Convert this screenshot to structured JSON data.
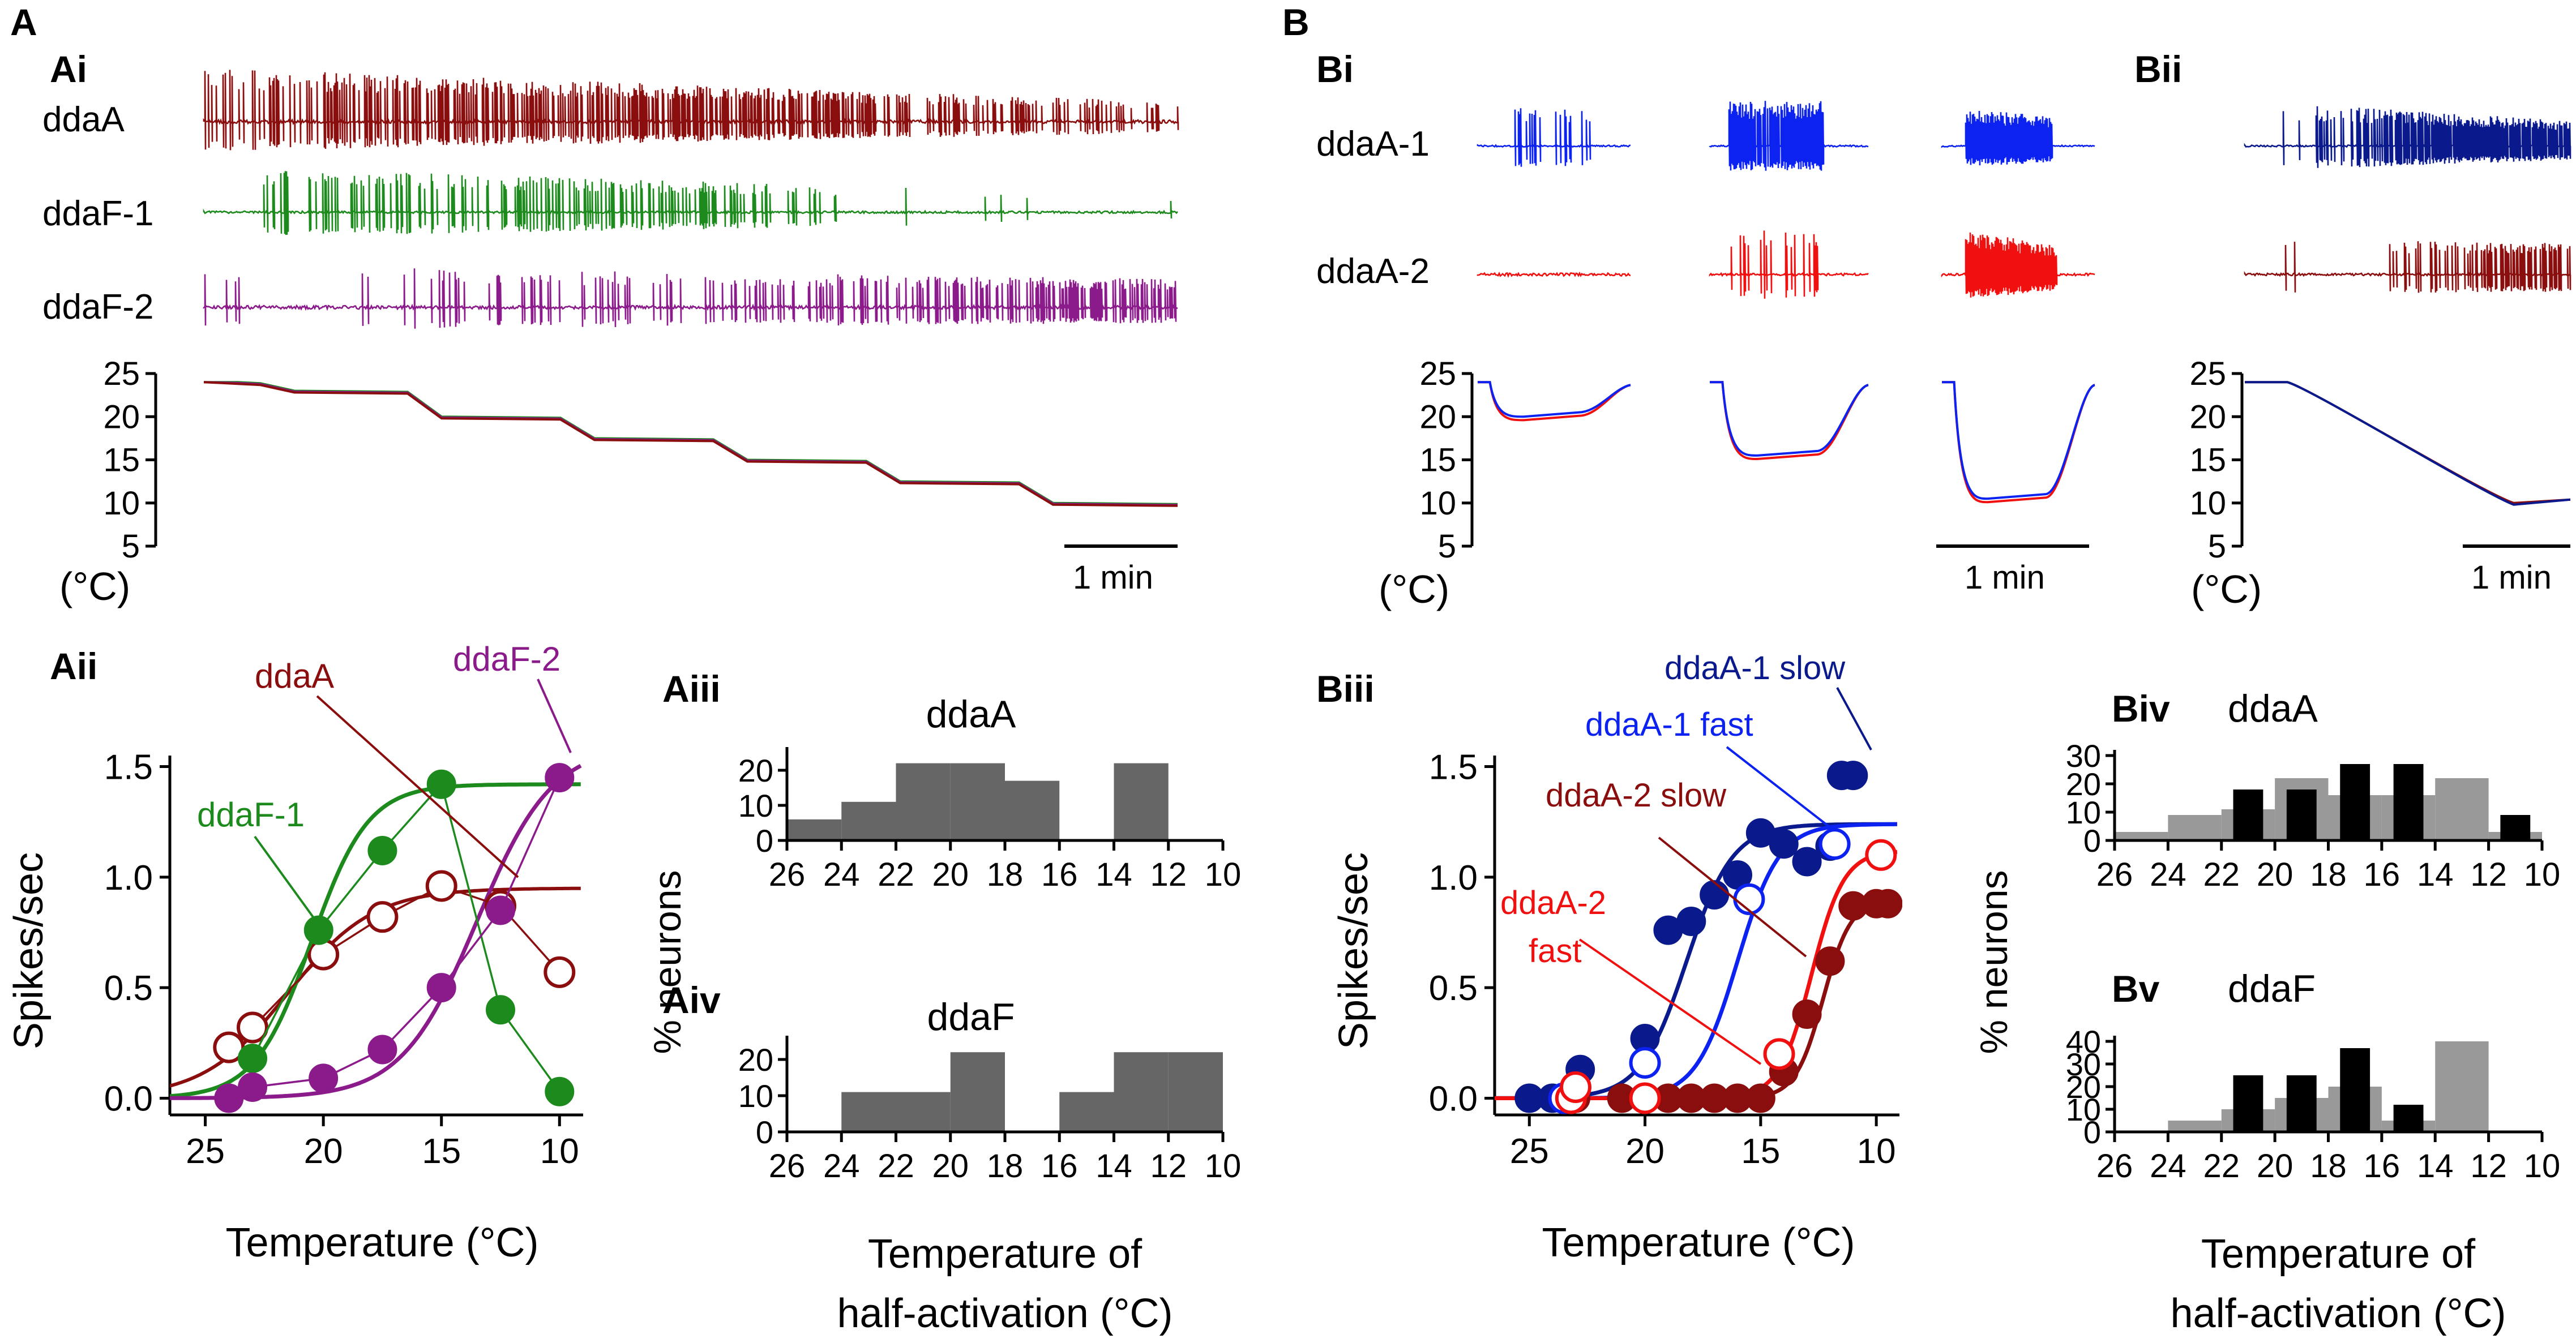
{
  "panel_labels": {
    "A": "A",
    "Ai": "Ai",
    "Aii": "Aii",
    "Aiii": "Aiii",
    "Aiv": "Aiv",
    "B": "B",
    "Bi": "Bi",
    "Bii": "Bii",
    "Biii": "Biii",
    "Biv": "Biv",
    "Bv": "Bv"
  },
  "colors": {
    "ddaA_dark": "#8b0e0e",
    "ddaF1_green": "#1c8a1c",
    "ddaF2_purple": "#8b1a8b",
    "blue_dark": "#0a1a8c",
    "blue_bright": "#0b22f0",
    "red_bright": "#f01010",
    "hist_dark": "#666666",
    "hist_black": "#000000",
    "hist_grey": "#999999"
  },
  "chart_data": [
    {
      "id": "Ai",
      "type": "line",
      "traces": [
        "ddaA",
        "ddaF-1",
        "ddaF-2"
      ],
      "ylabel": "(°C)",
      "yticks": [
        "25",
        "20",
        "15",
        "10",
        "5"
      ],
      "ylim": [
        5,
        25
      ],
      "scalebar_label": "1 min",
      "temperature_steps_c": [
        24,
        23,
        20,
        17.5,
        15,
        12.5,
        10
      ]
    },
    {
      "id": "Bi",
      "type": "line",
      "traces": [
        "ddaA-1",
        "ddaA-2"
      ],
      "ylabel": "(°C)",
      "yticks": [
        "25",
        "20",
        "15",
        "10",
        "5"
      ],
      "ylim": [
        5,
        25
      ],
      "scalebar_label": "1 min",
      "step_minimum_c": [
        20,
        15.5,
        10.5
      ]
    },
    {
      "id": "Bii",
      "type": "line",
      "ylabel": "(°C)",
      "yticks": [
        "25",
        "20",
        "15",
        "10",
        "5"
      ],
      "ylim": [
        5,
        25
      ],
      "scalebar_label": "1 min",
      "ramp_c": [
        24,
        10
      ]
    },
    {
      "id": "Aii",
      "type": "scatter",
      "xlabel": "Temperature (°C)",
      "ylabel": "Spikes/sec",
      "xticks": [
        "25",
        "20",
        "15",
        "10"
      ],
      "yticks": [
        "0.0",
        "0.5",
        "1.0",
        "1.5"
      ],
      "xlim": [
        26.5,
        9
      ],
      "ylim": [
        -0.05,
        1.55
      ],
      "series": [
        {
          "name": "ddaA",
          "label": "ddaA",
          "marker": "open",
          "x": [
            24,
            23,
            20,
            17.5,
            15,
            12.5,
            10
          ],
          "y": [
            0.23,
            0.32,
            0.65,
            0.82,
            0.96,
            0.87,
            0.57
          ]
        },
        {
          "name": "ddaF-1",
          "label": "ddaF-1",
          "marker": "filled",
          "x": [
            23,
            20.2,
            17.5,
            15,
            12.5,
            10
          ],
          "y": [
            0.18,
            0.76,
            1.12,
            1.42,
            0.4,
            0.03
          ]
        },
        {
          "name": "ddaF-2",
          "label": "ddaF-2",
          "marker": "filled",
          "x": [
            24,
            23,
            20,
            17.5,
            15,
            12.5,
            10
          ],
          "y": [
            0.0,
            0.05,
            0.09,
            0.22,
            0.5,
            0.85,
            1.45
          ]
        }
      ]
    },
    {
      "id": "Aiii",
      "type": "bar",
      "title": "ddaA",
      "categories": [
        "26-24",
        "24-22",
        "22-20",
        "20-18",
        "18-16",
        "16-14",
        "14-12",
        "12-10"
      ],
      "values": [
        6,
        11,
        22,
        22,
        17,
        0,
        22,
        0
      ],
      "xticks": [
        "26",
        "24",
        "22",
        "20",
        "18",
        "16",
        "14",
        "12",
        "10"
      ],
      "yticks": [
        "0",
        "10",
        "20"
      ],
      "ylim": [
        0,
        25
      ]
    },
    {
      "id": "Aiv",
      "type": "bar",
      "title": "ddaF",
      "categories": [
        "26-24",
        "24-22",
        "22-20",
        "20-18",
        "18-16",
        "16-14",
        "14-12",
        "12-10"
      ],
      "values": [
        0,
        11,
        11,
        22,
        0,
        11,
        22,
        22
      ],
      "xticks": [
        "26",
        "24",
        "22",
        "20",
        "18",
        "16",
        "14",
        "12",
        "10"
      ],
      "yticks": [
        "0",
        "10",
        "20"
      ],
      "ylim": [
        0,
        25
      ],
      "ylabel": "% neurons",
      "xlabel_line1": "Temperature of",
      "xlabel_line2": "half-activation (°C)"
    },
    {
      "id": "Biii",
      "type": "scatter",
      "xlabel": "Temperature (°C)",
      "ylabel": "Spikes/sec",
      "xticks": [
        "25",
        "20",
        "15",
        "10"
      ],
      "yticks": [
        "0.0",
        "0.5",
        "1.0",
        "1.5"
      ],
      "xlim": [
        26.5,
        9
      ],
      "ylim": [
        -0.05,
        1.55
      ],
      "series": [
        {
          "name": "ddaA-1 slow",
          "label": "ddaA-1 slow",
          "marker": "filled",
          "x": [
            25,
            24,
            23,
            22.8,
            20,
            19,
            18,
            17,
            16,
            15,
            14,
            13,
            12,
            11.5,
            11
          ],
          "y": [
            0.0,
            0.0,
            0.05,
            0.13,
            0.27,
            0.76,
            0.8,
            0.92,
            1.01,
            1.2,
            1.15,
            1.07,
            1.14,
            1.46,
            1.46
          ]
        },
        {
          "name": "ddaA-1 fast",
          "label": "ddaA-1 fast",
          "marker": "open",
          "x": [
            23.5,
            20,
            15.5,
            11.8
          ],
          "y": [
            0.0,
            0.16,
            0.9,
            1.15
          ]
        },
        {
          "name": "ddaA-2 slow",
          "label": "ddaA-2 slow",
          "marker": "filled",
          "x": [
            23,
            21,
            20,
            19,
            18,
            17,
            16,
            15,
            14,
            13,
            12,
            11,
            10,
            9.5
          ],
          "y": [
            0.0,
            0.0,
            0.0,
            0.0,
            0.0,
            0.0,
            0.0,
            0.0,
            0.12,
            0.38,
            0.62,
            0.87,
            0.88,
            0.88
          ]
        },
        {
          "name": "ddaA-2 fast",
          "label_line1": "ddaA-2",
          "label_line2": "fast",
          "marker": "open",
          "x": [
            23.2,
            23,
            20,
            14.2,
            9.8
          ],
          "y": [
            0.0,
            0.05,
            0.0,
            0.2,
            1.1
          ]
        }
      ]
    },
    {
      "id": "Biv",
      "type": "bar",
      "title": "ddaA",
      "bins": [
        "26-24",
        "24-22",
        "22-20",
        "20-18",
        "18-16",
        "16-14",
        "14-12",
        "12-10"
      ],
      "series": [
        {
          "name": "grey",
          "values": [
            3,
            9,
            11,
            22,
            16,
            16,
            22,
            3
          ]
        },
        {
          "name": "black",
          "values": [
            0,
            0,
            18,
            18,
            27,
            27,
            0,
            9
          ]
        }
      ],
      "xticks": [
        "26",
        "24",
        "22",
        "20",
        "18",
        "16",
        "14",
        "12",
        "10"
      ],
      "yticks": [
        "0",
        "10",
        "20",
        "30"
      ],
      "ylim": [
        0,
        30
      ]
    },
    {
      "id": "Bv",
      "type": "bar",
      "title": "ddaF",
      "bins": [
        "26-24",
        "24-22",
        "22-20",
        "20-18",
        "18-16",
        "16-14",
        "14-12",
        "12-10"
      ],
      "series": [
        {
          "name": "grey",
          "values": [
            0,
            5,
            10,
            15,
            20,
            5,
            40,
            0
          ]
        },
        {
          "name": "black",
          "values": [
            0,
            0,
            25,
            25,
            37,
            12,
            0,
            0
          ]
        }
      ],
      "xticks": [
        "26",
        "24",
        "22",
        "20",
        "18",
        "16",
        "14",
        "12",
        "10"
      ],
      "yticks": [
        "0",
        "10",
        "20",
        "30",
        "40"
      ],
      "ylim": [
        0,
        40
      ],
      "ylabel": "% neurons",
      "xlabel_line1": "Temperature of",
      "xlabel_line2": "half-activation (°C)"
    }
  ]
}
